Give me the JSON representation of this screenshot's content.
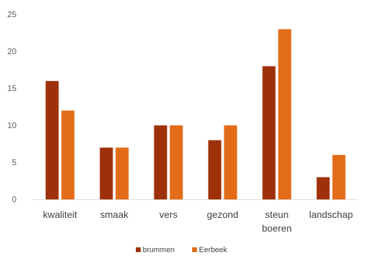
{
  "chart_data": {
    "type": "bar",
    "title": "",
    "xlabel": "",
    "ylabel": "",
    "ylim": [
      0,
      25
    ],
    "yticks": [
      0,
      5,
      10,
      15,
      20,
      25
    ],
    "grid": false,
    "legend_position": "bottom",
    "categories": [
      [
        "kwaliteit"
      ],
      [
        "smaak"
      ],
      [
        "vers"
      ],
      [
        "gezond"
      ],
      [
        "steun",
        "boeren"
      ],
      [
        "landschap"
      ]
    ],
    "series": [
      {
        "name": "brummen",
        "values": [
          16,
          7,
          10,
          8,
          18,
          3
        ],
        "color": "#9E3109"
      },
      {
        "name": "Eerbeek",
        "values": [
          12,
          7,
          10,
          10,
          23,
          6
        ],
        "color": "#E36C18"
      }
    ]
  }
}
